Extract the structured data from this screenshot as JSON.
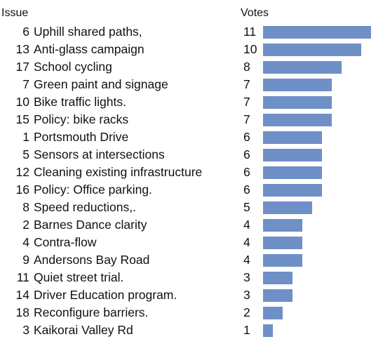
{
  "chart_data": {
    "type": "bar",
    "orientation": "horizontal",
    "header_issue": "Issue",
    "header_votes": "Votes",
    "bar_color": "#6f8fc7",
    "xlim": [
      0,
      11
    ],
    "rows": [
      {
        "id": "6",
        "label": "Uphill shared paths,",
        "value": 11
      },
      {
        "id": "13",
        "label": "Anti-glass campaign",
        "value": 10
      },
      {
        "id": "17",
        "label": "School cycling",
        "value": 8
      },
      {
        "id": "7",
        "label": "Green paint and signage",
        "value": 7
      },
      {
        "id": "10",
        "label": "Bike traffic lights.",
        "value": 7
      },
      {
        "id": "15",
        "label": "Policy: bike racks",
        "value": 7
      },
      {
        "id": "1",
        "label": "Portsmouth Drive",
        "value": 6
      },
      {
        "id": "5",
        "label": "Sensors at intersections",
        "value": 6
      },
      {
        "id": "12",
        "label": "Cleaning existing infrastructure",
        "value": 6
      },
      {
        "id": "16",
        "label": "Policy: Office parking.",
        "value": 6
      },
      {
        "id": "8",
        "label": "Speed reductions,.",
        "value": 5
      },
      {
        "id": "2",
        "label": "Barnes Dance clarity",
        "value": 4
      },
      {
        "id": "4",
        "label": "Contra-flow",
        "value": 4
      },
      {
        "id": "9",
        "label": "Andersons Bay Road",
        "value": 4
      },
      {
        "id": "11",
        "label": "Quiet street trial.",
        "value": 3
      },
      {
        "id": "14",
        "label": "Driver Education program.",
        "value": 3
      },
      {
        "id": "18",
        "label": "Reconfigure barriers.",
        "value": 2
      },
      {
        "id": "3",
        "label": "Kaikorai Valley Rd",
        "value": 1
      }
    ]
  }
}
